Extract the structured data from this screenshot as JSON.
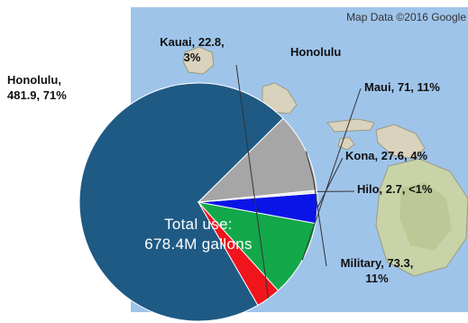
{
  "map": {
    "attribution": "Map Data ©2016 Google",
    "island_label": "Honolulu",
    "water_color": "#9fc4ea",
    "land_color": "#d9d3bd"
  },
  "chart_data": {
    "type": "pie",
    "center_text": [
      "Total use:",
      "678.4M gallons"
    ],
    "slices": [
      {
        "name": "Honolulu",
        "value": 481.9,
        "percent": "71%",
        "color": "#1f5a84",
        "label_lines": [
          "Honolulu,",
          "481.9, 71%"
        ]
      },
      {
        "name": "Kauai",
        "value": 22.8,
        "percent": "3%",
        "color": "#f0141c",
        "label_lines": [
          "Kauai, 22.8,",
          "3%"
        ]
      },
      {
        "name": "Maui",
        "value": 71,
        "percent": "11%",
        "color": "#13a84a",
        "label_lines": [
          "Maui, 71, 11%"
        ]
      },
      {
        "name": "Kona",
        "value": 27.6,
        "percent": "4%",
        "color": "#0a14e6",
        "label_lines": [
          "Kona, 27.6, 4%"
        ]
      },
      {
        "name": "Hilo",
        "value": 2.7,
        "percent": "<1%",
        "color": "#e8e8e8",
        "label_lines": [
          "Hilo, 2.7, <1%"
        ]
      },
      {
        "name": "Military",
        "value": 73.3,
        "percent": "11%",
        "color": "#a6a6a6",
        "label_lines": [
          "Military, 73.3,",
          "11%"
        ]
      }
    ]
  }
}
